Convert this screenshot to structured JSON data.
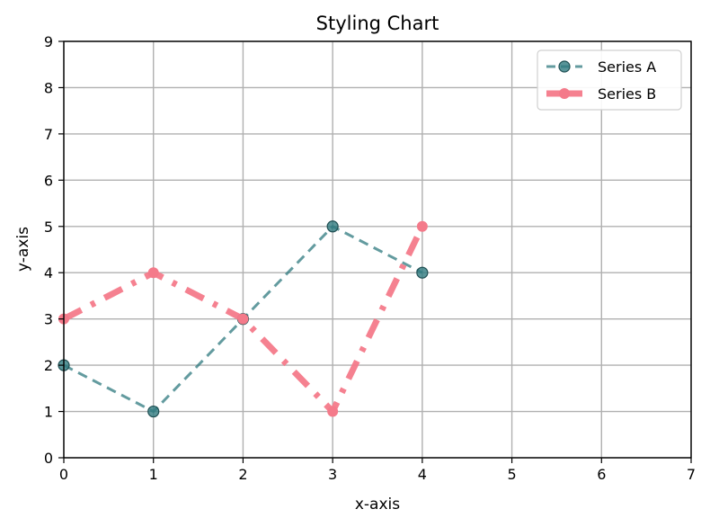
{
  "chart_data": {
    "type": "line",
    "title": "Styling Chart",
    "xlabel": "x-axis",
    "ylabel": "y-axis",
    "xlim": [
      0,
      7
    ],
    "ylim": [
      0,
      9
    ],
    "xticks": [
      0,
      1,
      2,
      3,
      4,
      5,
      6,
      7
    ],
    "yticks": [
      0,
      1,
      2,
      3,
      4,
      5,
      6,
      7,
      8,
      9
    ],
    "grid": true,
    "legend_position": "top-right",
    "series": [
      {
        "name": "Series A",
        "x": [
          0,
          1,
          2,
          3,
          4
        ],
        "y": [
          2,
          1,
          3,
          5,
          4
        ],
        "color": "#2f7a7f",
        "line_style": "dashed",
        "marker": "circle"
      },
      {
        "name": "Series B",
        "x": [
          0,
          1,
          2,
          3,
          4
        ],
        "y": [
          3,
          4,
          3,
          1,
          5
        ],
        "color": "#f47a8a",
        "line_style": "dash-dot",
        "marker": "circle"
      }
    ]
  }
}
